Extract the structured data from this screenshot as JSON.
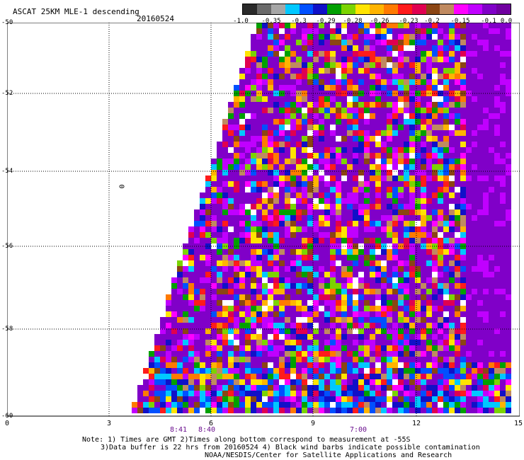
{
  "title": "ASCAT 25KM MLE-1 descending",
  "date": "20160524",
  "colorbar": {
    "colors": [
      "#2a2a2a",
      "#6a6a6a",
      "#a6a6a6",
      "#00c8ff",
      "#0050ff",
      "#1010c8",
      "#00a000",
      "#7bd400",
      "#ffe400",
      "#ffb400",
      "#ff7a00",
      "#ff1b1b",
      "#e00050",
      "#8b4513",
      "#c08a60",
      "#ff00ff",
      "#c000ff",
      "#8000c8",
      "#7000a0"
    ],
    "tick_labels": [
      "-1.0",
      "-0.35",
      "-0.3",
      "-0.29",
      "-0.28",
      "-0.26",
      "-0.23",
      "-0.2",
      "-0.15",
      "-0.1",
      "0.0"
    ]
  },
  "map": {
    "y_ticks": [
      "-50",
      "-52",
      "-54",
      "-56",
      "-58",
      "-60"
    ],
    "x_ticks": [
      "0",
      "3",
      "6",
      "9",
      "12",
      "15"
    ],
    "time_labels": [
      "8:41",
      "8:40",
      "7:00"
    ],
    "zero_label": "0"
  },
  "notes": {
    "line1": "Note: 1) Times are GMT 2)Times along bottom correspond to measurement at -55S",
    "line2": "3)Data buffer is 22 hrs from 20160524 4) Black wind barbs indicate possible contamination",
    "line3": "NOAA/NESDIS/Center for Satellite Applications and Research"
  }
}
